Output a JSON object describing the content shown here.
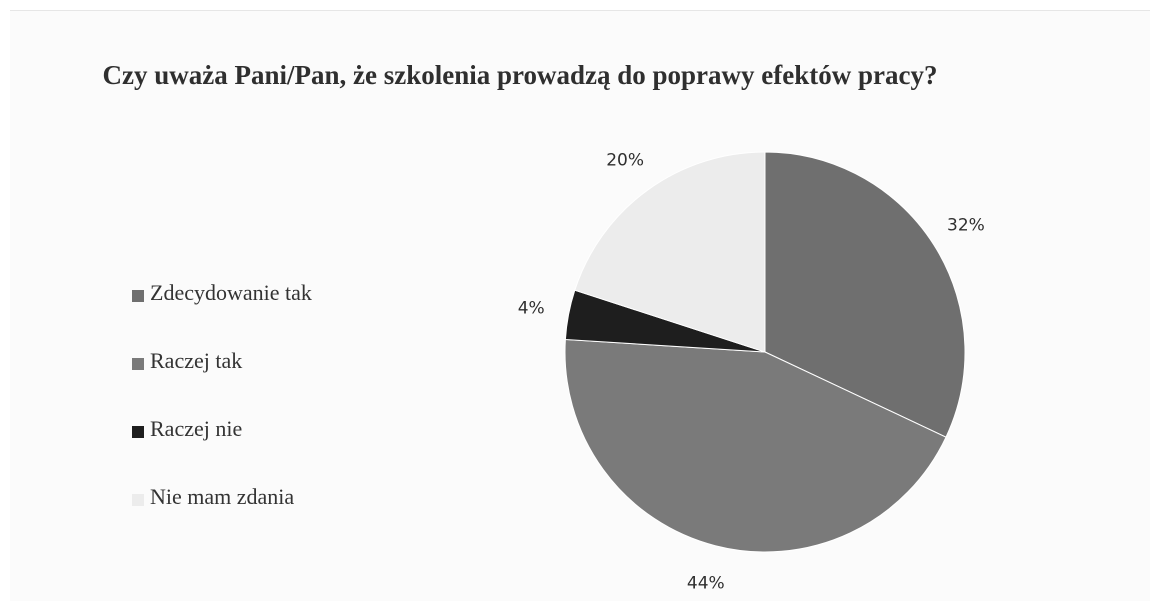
{
  "chart_data": {
    "type": "pie",
    "title": "Czy uważa Pani/Pan, że szkolenia prowadzą do poprawy efektów pracy?",
    "categories": [
      "Zdecydowanie tak",
      "Raczej tak",
      "Raczej nie",
      "Nie mam zdania"
    ],
    "values": [
      32,
      44,
      4,
      20
    ],
    "value_labels": [
      "32%",
      "44%",
      "4%",
      "20%"
    ],
    "colors": [
      "#6f6f6f",
      "#7a7a7a",
      "#1e1e1e",
      "#ececec"
    ],
    "legend_position": "left",
    "start_angle_deg": 0,
    "direction": "clockwise"
  }
}
